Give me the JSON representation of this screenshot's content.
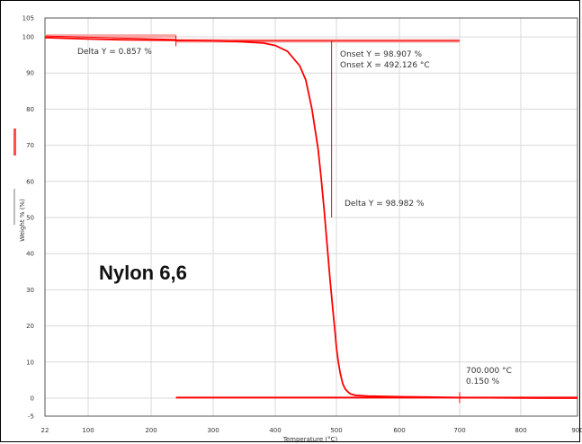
{
  "chart_data": {
    "type": "line",
    "title": "Nylon 6,6",
    "xlabel": "Temperature (°C)",
    "ylabel": "Weight % (%)",
    "xlim": [
      22,
      900
    ],
    "ylim": [
      -5,
      105
    ],
    "grid": true,
    "x_ticks": [
      "22",
      "100",
      "200",
      "300",
      "400",
      "500",
      "600",
      "700",
      "800",
      "900"
    ],
    "y_ticks": [
      "105",
      "100",
      "90",
      "80",
      "70",
      "60",
      "50",
      "40",
      "30",
      "20",
      "10",
      "0",
      "-5"
    ],
    "series": [
      {
        "color": "#ff0000",
        "x": [
          22,
          60,
          100,
          150,
          200,
          250,
          300,
          340,
          380,
          400,
          420,
          440,
          450,
          460,
          470,
          475,
          480,
          485,
          490,
          495,
          498,
          500,
          503,
          506,
          510,
          514,
          518,
          522,
          530,
          550,
          600,
          650,
          700,
          750,
          800,
          850,
          900
        ],
        "y": [
          99.8,
          99.6,
          99.4,
          99.2,
          99.1,
          99.0,
          98.9,
          98.7,
          98.3,
          97.6,
          96.0,
          92.0,
          88.0,
          80.0,
          69.0,
          61.0,
          52.0,
          42.0,
          32.0,
          23.0,
          18.0,
          14.0,
          10.0,
          7.0,
          4.0,
          2.5,
          1.8,
          1.2,
          0.8,
          0.6,
          0.4,
          0.3,
          0.15,
          0.1,
          0.05,
          0.0,
          0.0
        ]
      }
    ],
    "annotations": [
      {
        "lines": [
          "Delta Y = 0.857 %"
        ]
      },
      {
        "lines": [
          "Onset Y = 98.907 %",
          "Onset X = 492.126 °C"
        ]
      },
      {
        "lines": [
          "Delta Y = 98.982 %"
        ]
      },
      {
        "lines": [
          "700.000 °C",
          "0.150 %"
        ]
      }
    ],
    "markers": {
      "delta1": {
        "x1": 22,
        "x2": 240,
        "y1": 100.2,
        "y2": 99.3
      },
      "onset_baseline": {
        "x1": 240,
        "x2": 700,
        "y": 98.9
      },
      "onset_x": 492.126,
      "delta2_line": {
        "x1": 240,
        "x2": 900,
        "y": 0.15
      },
      "point_700": {
        "x": 700,
        "y": 0.15
      }
    }
  }
}
